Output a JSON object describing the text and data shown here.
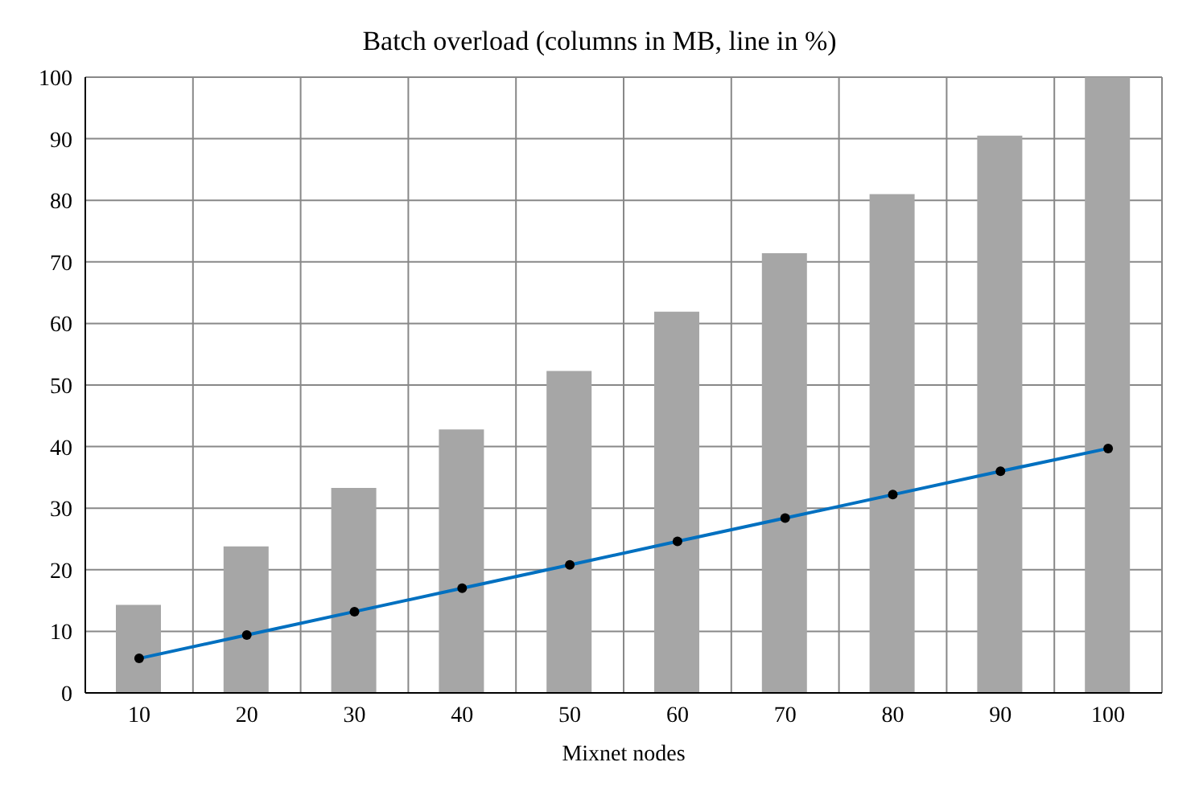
{
  "chart_data": {
    "type": "bar",
    "title": "Batch overload (columns in MB, line in %)",
    "xlabel": "Mixnet nodes",
    "categories": [
      "10",
      "20",
      "30",
      "40",
      "50",
      "60",
      "70",
      "80",
      "90",
      "100"
    ],
    "series": [
      {
        "color": "#a6a6a6",
        "values": [
          14.3,
          23.8,
          33.3,
          42.8,
          52.3,
          61.9,
          71.4,
          81,
          90.5,
          100
        ]
      },
      {
        "type": "line",
        "color": "#0070c0",
        "marker": "circle",
        "values": [
          5.6,
          9.4,
          13.2,
          17,
          20.8,
          24.6,
          28.4,
          32.2,
          36,
          39.7
        ]
      }
    ],
    "ylim": [
      0,
      100
    ],
    "yticks": [
      0,
      10,
      20,
      30,
      40,
      50,
      60,
      70,
      80,
      90,
      100
    ],
    "grid": true
  }
}
